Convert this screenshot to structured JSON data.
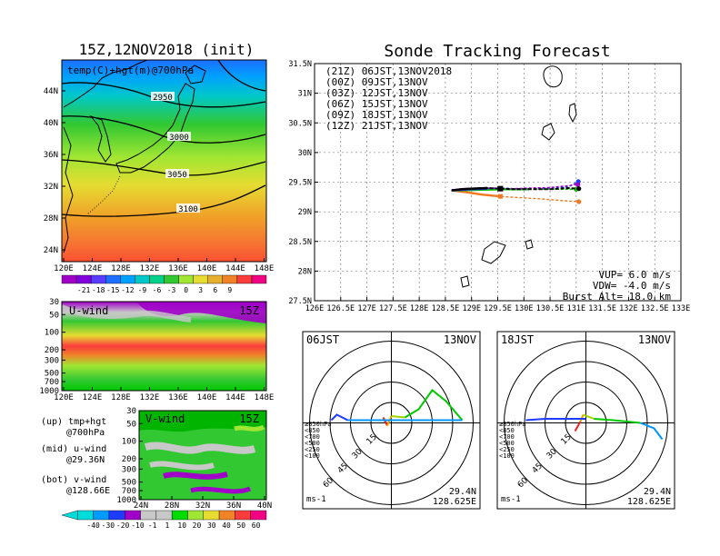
{
  "left": {
    "title": "15Z,12NOV2018 (init)",
    "map": {
      "label": "temp(C)+hgt(m)@700hPa",
      "lat_ticks": [
        "44N",
        "40N",
        "36N",
        "32N",
        "28N",
        "24N"
      ],
      "lon_ticks": [
        "120E",
        "124E",
        "128E",
        "132E",
        "136E",
        "140E",
        "144E",
        "148E"
      ],
      "contour_labels": [
        "2950",
        "3000",
        "3050",
        "3100"
      ]
    },
    "temp_colorbar": [
      "-21",
      "-18",
      "-15",
      "-12",
      "-9",
      "-6",
      "-3",
      "0",
      "3",
      "6",
      "9"
    ],
    "uwind": {
      "label": "U-wind",
      "time": "15Z",
      "p_ticks": [
        "30",
        "50",
        "100",
        "200",
        "300",
        "500",
        "700",
        "1000"
      ],
      "lon_ticks": [
        "120E",
        "124E",
        "128E",
        "132E",
        "136E",
        "140E",
        "144E",
        "148E"
      ]
    },
    "vwind": {
      "label": "V-wind",
      "time": "15Z",
      "p_ticks": [
        "30",
        "50",
        "100",
        "200",
        "300",
        "500",
        "700",
        "1000"
      ],
      "lat_ticks": [
        "24N",
        "28N",
        "32N",
        "36N",
        "40N"
      ]
    },
    "legend": {
      "up1": "(up) tmp+hgt",
      "up2": "@700hPa",
      "mid1": "(mid) u-wind",
      "mid2": "@29.36N",
      "bot1": "(bot) v-wind",
      "bot2": "@128.66E"
    },
    "wind_colorbar": [
      "-40",
      "-30",
      "-20",
      "-10",
      "-1",
      "1",
      "10",
      "20",
      "30",
      "40",
      "50",
      "60"
    ]
  },
  "chart_data": {
    "type": "line",
    "title": "Sonde Tracking Forecast",
    "xlim": [
      126,
      133
    ],
    "ylim": [
      27.5,
      31.5
    ],
    "x_ticks": [
      "126E",
      "126.5E",
      "127E",
      "127.5E",
      "128E",
      "128.5E",
      "129E",
      "129.5E",
      "130E",
      "130.5E",
      "131E",
      "131.5E",
      "132E",
      "132.5E",
      "133E"
    ],
    "y_ticks": [
      "31.5N",
      "31N",
      "30.5N",
      "30N",
      "29.5N",
      "29N",
      "28.5N",
      "28N",
      "27.5N"
    ],
    "grid": true,
    "series": [
      {
        "name": "(21Z)  06JST,13NOV2018",
        "color": "#000000",
        "points": [
          [
            128.62,
            29.36
          ],
          [
            128.8,
            29.38
          ],
          [
            129.0,
            29.39
          ],
          [
            129.3,
            29.4
          ],
          [
            129.55,
            29.39
          ],
          [
            129.8,
            29.38
          ],
          [
            130.1,
            29.38
          ],
          [
            130.5,
            29.38
          ],
          [
            130.85,
            29.4
          ],
          [
            131.05,
            29.39
          ]
        ]
      },
      {
        "name": "(00Z)  09JST,13NOV",
        "color": "#a000c8",
        "points": [
          [
            128.62,
            29.36
          ],
          [
            128.8,
            29.38
          ],
          [
            129.0,
            29.39
          ],
          [
            129.3,
            29.4
          ],
          [
            129.55,
            29.4
          ],
          [
            129.8,
            29.39
          ],
          [
            130.1,
            29.4
          ],
          [
            130.5,
            29.41
          ],
          [
            130.85,
            29.44
          ],
          [
            131.03,
            29.46
          ]
        ]
      },
      {
        "name": "(03Z)  12JST,13NOV",
        "color": "#1e3cff",
        "points": [
          [
            128.62,
            29.36
          ],
          [
            128.8,
            29.37
          ],
          [
            129.0,
            29.38
          ],
          [
            129.3,
            29.39
          ],
          [
            129.55,
            29.4
          ],
          [
            129.8,
            29.39
          ],
          [
            130.1,
            29.39
          ],
          [
            130.5,
            29.4
          ],
          [
            130.85,
            29.42
          ],
          [
            131.04,
            29.51
          ]
        ]
      },
      {
        "name": "(06Z)  15JST,13NOV",
        "color": "#00c800",
        "points": [
          [
            128.62,
            29.36
          ],
          [
            129.0,
            29.37
          ],
          [
            129.55,
            29.38
          ],
          [
            130.1,
            29.38
          ],
          [
            130.6,
            29.38
          ],
          [
            131.0,
            29.38
          ]
        ]
      },
      {
        "name": "(09Z)  18JST,13NOV",
        "color": "#f0a000",
        "points": [
          [
            128.62,
            29.36
          ],
          [
            129.0,
            29.37
          ],
          [
            129.55,
            29.38
          ],
          [
            130.1,
            29.38
          ],
          [
            130.6,
            29.38
          ],
          [
            131.0,
            29.38
          ]
        ]
      },
      {
        "name": "(12Z)  21JST,13NOV",
        "color": "#f07820",
        "points": [
          [
            128.62,
            29.36
          ],
          [
            128.9,
            29.33
          ],
          [
            129.2,
            29.29
          ],
          [
            129.55,
            29.26
          ],
          [
            129.9,
            29.24
          ],
          [
            130.3,
            29.22
          ],
          [
            130.7,
            29.19
          ],
          [
            131.05,
            29.17
          ]
        ]
      }
    ],
    "params": {
      "vup": "VUP=  6.0 m/s",
      "vdw": "VDW= -4.0 m/s",
      "burst": "Burst Alt= 18.0 km"
    }
  },
  "hodographs": [
    {
      "time": "06JST",
      "date": "13NOV",
      "lat": "29.4N",
      "lon": "128.625E",
      "units": "ms-1",
      "rings": [
        "15",
        "30",
        "45",
        "60"
      ],
      "pressure_legend": [
        "≥850hPa",
        "<850",
        "<700",
        "<500",
        "<250",
        "<100"
      ]
    },
    {
      "time": "18JST",
      "date": "13NOV",
      "lat": "29.4N",
      "lon": "128.625E",
      "units": "ms-1",
      "rings": [
        "15",
        "30",
        "45",
        "60"
      ],
      "pressure_legend": [
        "≥850hPa",
        "<850",
        "<700",
        "<500",
        "<250",
        "<100"
      ]
    }
  ],
  "colors": {
    "temp_scale": [
      "#a000c8",
      "#8200dc",
      "#5a3cff",
      "#1e6eff",
      "#00a0ff",
      "#00c8c8",
      "#00d28c",
      "#32c832",
      "#a0e632",
      "#e6dc32",
      "#e6af2d",
      "#f08228",
      "#fa3c3c",
      "#f00082"
    ],
    "wind_scale": [
      "#00dcdc",
      "#009bff",
      "#1e3cff",
      "#a000c8",
      "#c8c8c8",
      "#c8c8c8",
      "#00dc00",
      "#a0e632",
      "#e6dc32",
      "#f08228",
      "#fa3c3c",
      "#f00082"
    ],
    "pressure_legend": [
      "#fa1e1e",
      "#f0a000",
      "#e6c800",
      "#00c800",
      "#0096ff",
      "#1e3cff"
    ]
  }
}
